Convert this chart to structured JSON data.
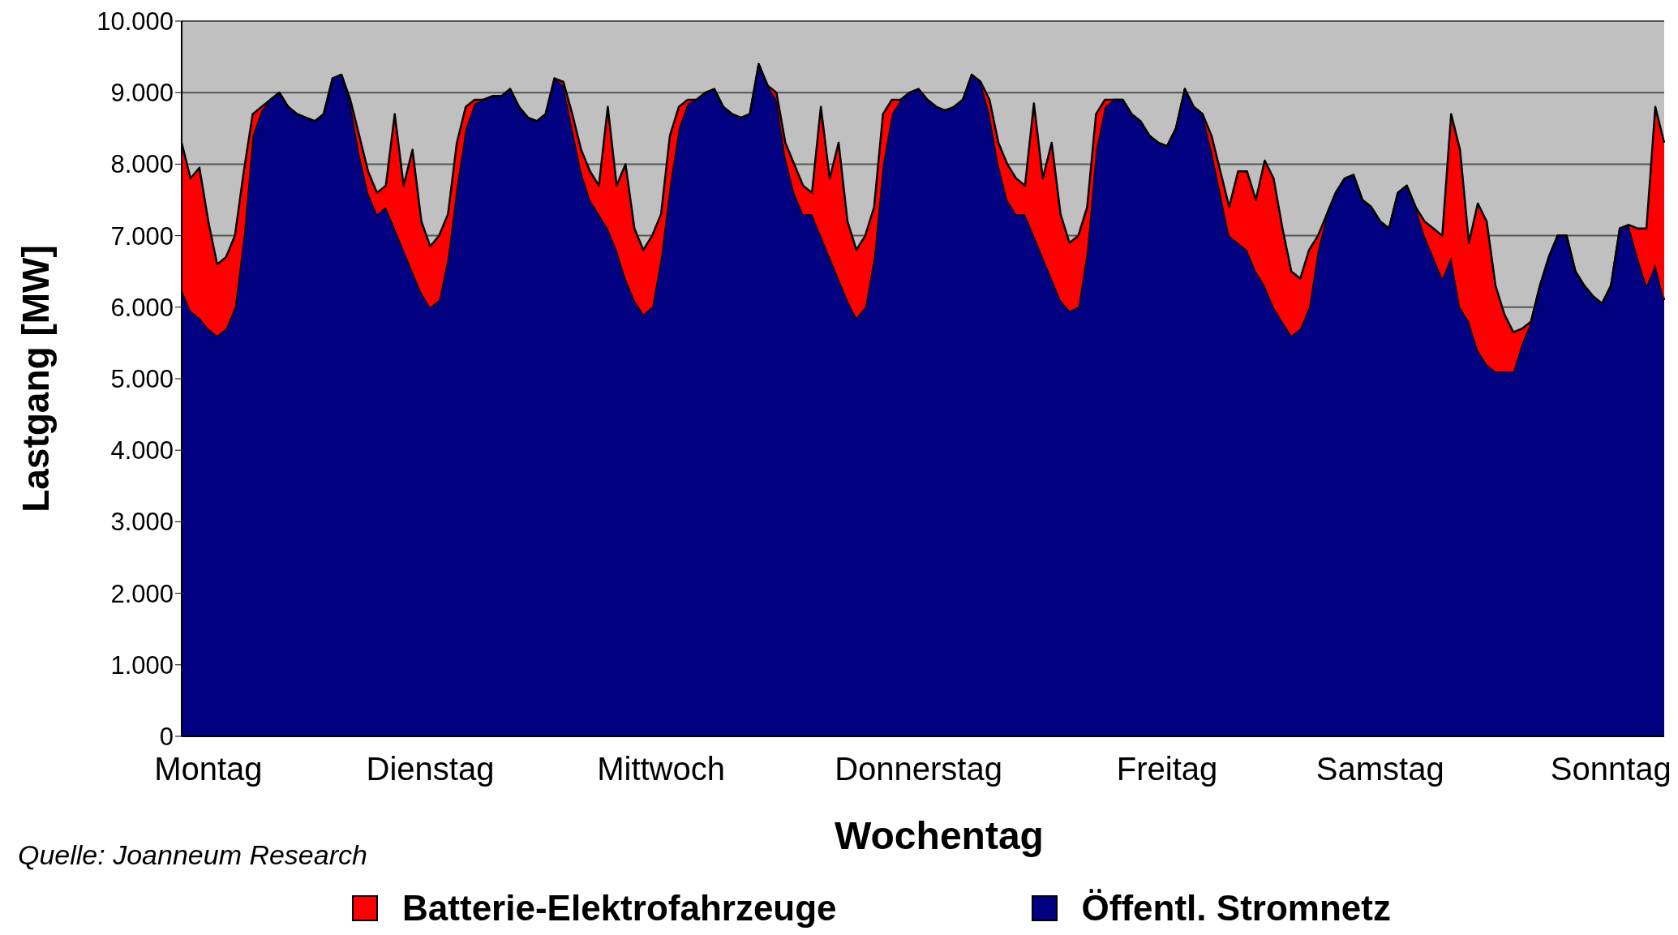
{
  "chart_data": {
    "type": "area",
    "stacked": true,
    "xlabel": "Wochentag",
    "ylabel": "Lastgang [MW]",
    "annotations": [
      "Quelle: Joanneum Research"
    ],
    "categories": [
      null,
      null,
      null,
      "Montag",
      null,
      null,
      null,
      null,
      null,
      null,
      null,
      null,
      null,
      null,
      null,
      null,
      null,
      null,
      null,
      null,
      null,
      null,
      null,
      null,
      null,
      null,
      null,
      null,
      "Dienstag",
      null,
      null,
      null,
      null,
      null,
      null,
      null,
      null,
      null,
      null,
      null,
      null,
      null,
      null,
      null,
      null,
      null,
      null,
      null,
      null,
      null,
      null,
      null,
      null,
      null,
      "Mittwoch",
      null,
      null,
      null,
      null,
      null,
      null,
      null,
      null,
      null,
      null,
      null,
      null,
      null,
      null,
      null,
      null,
      null,
      null,
      null,
      null,
      null,
      null,
      null,
      null,
      null,
      null,
      null,
      null,
      "Donnerstag",
      null,
      null,
      null,
      null,
      null,
      null,
      null,
      null,
      null,
      null,
      null,
      null,
      null,
      null,
      null,
      null,
      null,
      null,
      null,
      null,
      null,
      null,
      null,
      null,
      null,
      null,
      null,
      "Freitag",
      null,
      null,
      null,
      null,
      null,
      null,
      null,
      null,
      null,
      null,
      null,
      null,
      null,
      null,
      null,
      null,
      null,
      null,
      null,
      null,
      null,
      null,
      null,
      "Samstag",
      null,
      null,
      null,
      null,
      null,
      null,
      null,
      null,
      null,
      null,
      null,
      null,
      null,
      null,
      null,
      null,
      null,
      null,
      null,
      null,
      null,
      null,
      null,
      null,
      null,
      "Sonntag",
      null,
      null,
      null,
      null,
      null,
      null
    ],
    "series": [
      {
        "name": "Öffentl. Stromnetz",
        "color": "#000080",
        "values": [
          6250,
          5950,
          5850,
          5700,
          5600,
          5700,
          6000,
          7000,
          8400,
          8750,
          8900,
          9000,
          8800,
          8700,
          8650,
          8600,
          8700,
          9200,
          9250,
          8850,
          8150,
          7600,
          7300,
          7400,
          7100,
          6800,
          6500,
          6200,
          6000,
          6100,
          6700,
          7700,
          8500,
          8850,
          8900,
          8950,
          8950,
          9050,
          8800,
          8650,
          8600,
          8700,
          9200,
          9100,
          8500,
          7900,
          7500,
          7300,
          7100,
          6800,
          6400,
          6100,
          5900,
          6000,
          6700,
          7700,
          8500,
          8850,
          8900,
          9000,
          9050,
          8800,
          8700,
          8650,
          8700,
          9400,
          9100,
          8900,
          8100,
          7600,
          7300,
          7300,
          7000,
          6700,
          6400,
          6100,
          5850,
          6000,
          6700,
          8000,
          8700,
          8900,
          9000,
          9050,
          8900,
          8800,
          8750,
          8800,
          8900,
          9250,
          9150,
          8700,
          8000,
          7500,
          7300,
          7300,
          7000,
          6700,
          6400,
          6100,
          5950,
          6000,
          6800,
          8200,
          8800,
          8900,
          8900,
          8700,
          8600,
          8400,
          8300,
          8250,
          8500,
          9050,
          8800,
          8700,
          8200,
          7600,
          7000,
          6900,
          6800,
          6500,
          6300,
          6000,
          5800,
          5600,
          5700,
          6000,
          6800,
          7300,
          7600,
          7800,
          7850,
          7500,
          7400,
          7200,
          7100,
          7600,
          7700,
          7400,
          7000,
          6700,
          6400,
          6700,
          6000,
          5800,
          5400,
          5200,
          5100,
          5100,
          5100,
          5500,
          5800,
          6300,
          6700,
          7000,
          7000,
          6500,
          6300,
          6150,
          6050,
          6300,
          7100,
          7150,
          6700,
          6300,
          6600,
          6100
        ]
      },
      {
        "name": "Batterie-Elektrofahrzeuge",
        "color": "#ff0000",
        "values": [
          2050,
          1850,
          2100,
          1500,
          1000,
          1000,
          1000,
          900,
          300,
          50,
          0,
          0,
          0,
          0,
          0,
          0,
          0,
          0,
          0,
          50,
          250,
          300,
          300,
          300,
          1600,
          900,
          1700,
          1000,
          850,
          900,
          600,
          600,
          300,
          50,
          0,
          0,
          0,
          0,
          0,
          0,
          0,
          0,
          0,
          50,
          200,
          300,
          400,
          400,
          1700,
          900,
          1600,
          1000,
          900,
          1000,
          600,
          700,
          300,
          50,
          0,
          0,
          0,
          0,
          0,
          0,
          0,
          0,
          0,
          100,
          200,
          400,
          400,
          300,
          1800,
          1100,
          1900,
          1100,
          950,
          1000,
          700,
          700,
          200,
          0,
          0,
          0,
          0,
          0,
          0,
          0,
          0,
          0,
          0,
          200,
          300,
          500,
          500,
          400,
          1850,
          1100,
          1900,
          1200,
          950,
          1000,
          600,
          500,
          100,
          0,
          0,
          0,
          0,
          0,
          0,
          0,
          0,
          0,
          0,
          0,
          200,
          300,
          400,
          1000,
          1100,
          1000,
          1750,
          1800,
          1300,
          900,
          700,
          800,
          200,
          0,
          0,
          0,
          0,
          0,
          0,
          0,
          0,
          0,
          0,
          0,
          200,
          400,
          600,
          2000,
          2200,
          1100,
          2050,
          2000,
          1200,
          800,
          550,
          200,
          0,
          0,
          0,
          0,
          0,
          0,
          0,
          0,
          0,
          0,
          0,
          0,
          400,
          800,
          2200,
          2200
        ]
      }
    ],
    "ylim": [
      0,
      10000
    ],
    "yticks": [
      {
        "value": 0,
        "label": "0"
      },
      {
        "value": 1000,
        "label": "1.000"
      },
      {
        "value": 2000,
        "label": "2.000"
      },
      {
        "value": 3000,
        "label": "3.000"
      },
      {
        "value": 4000,
        "label": "4.000"
      },
      {
        "value": 5000,
        "label": "5.000"
      },
      {
        "value": 6000,
        "label": "6.000"
      },
      {
        "value": 7000,
        "label": "7.000"
      },
      {
        "value": 8000,
        "label": "8.000"
      },
      {
        "value": 9000,
        "label": "9.000"
      },
      {
        "value": 10000,
        "label": "10.000"
      }
    ],
    "grid": "y",
    "legend": "bottom"
  }
}
